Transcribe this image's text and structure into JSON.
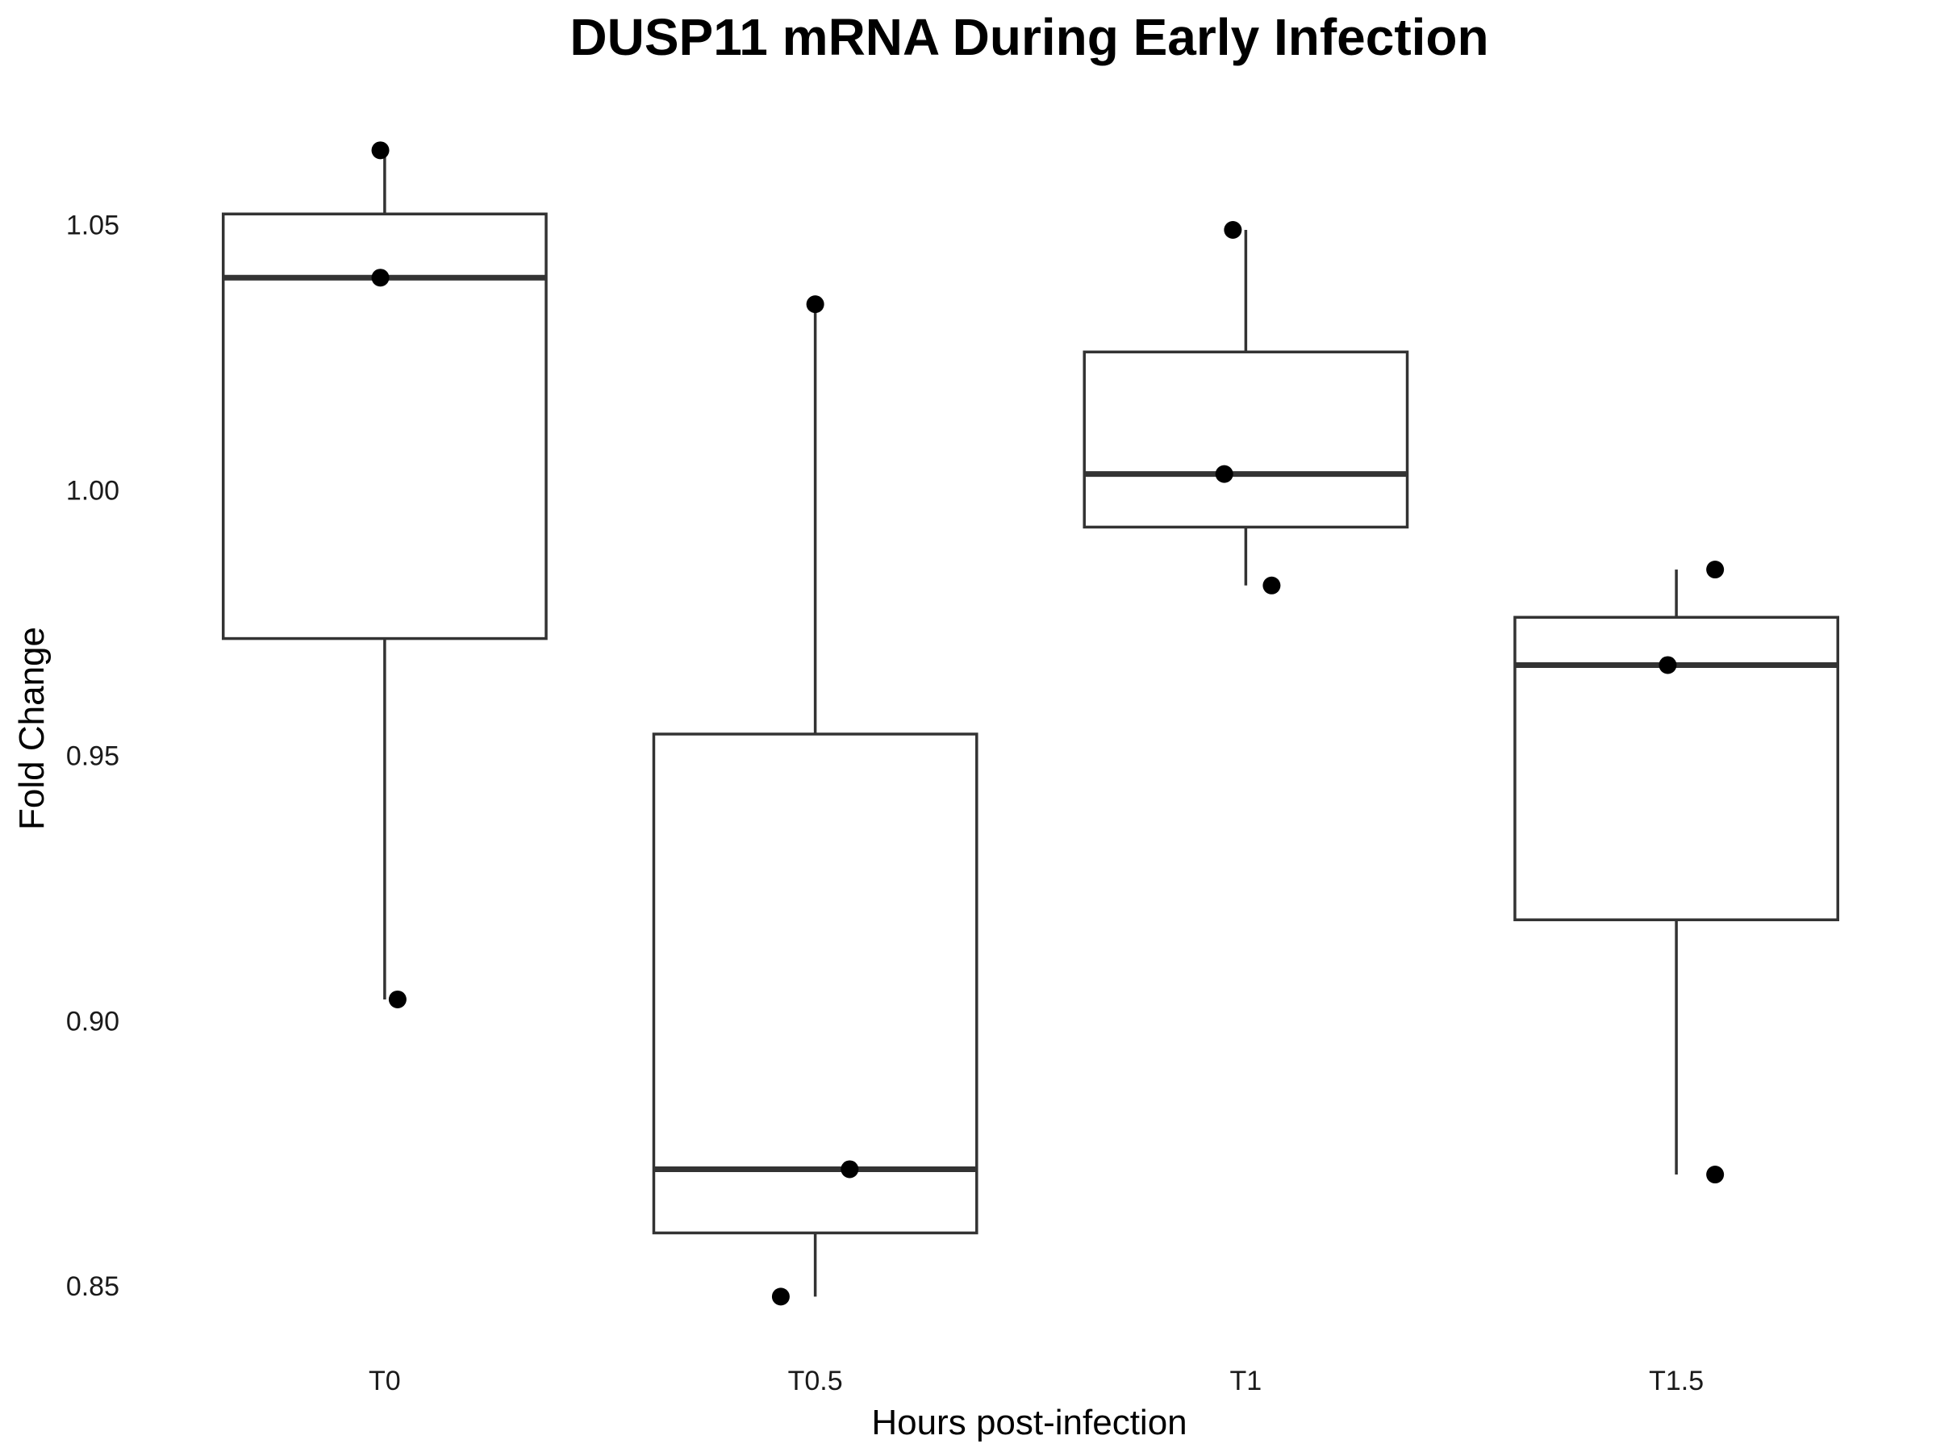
{
  "chart_data": {
    "type": "box",
    "title": "DUSP11 mRNA During Early Infection",
    "xlabel": "Hours post-infection",
    "ylabel": "Fold Change",
    "ylim": [
      0.84,
      1.068
    ],
    "yticks": [
      0.85,
      0.9,
      0.95,
      1.0,
      1.05
    ],
    "ytick_labels": [
      "0.85",
      "0.90",
      "0.95",
      "1.00",
      "1.05"
    ],
    "grid": false,
    "categories": [
      "T0",
      "T0.5",
      "T1",
      "T1.5"
    ],
    "boxes": [
      {
        "category": "T0",
        "min": 0.904,
        "q1": 0.972,
        "median": 1.04,
        "q3": 1.052,
        "max": 1.064
      },
      {
        "category": "T0.5",
        "min": 0.848,
        "q1": 0.86,
        "median": 0.872,
        "q3": 0.954,
        "max": 1.035
      },
      {
        "category": "T1",
        "min": 0.982,
        "q1": 0.993,
        "median": 1.003,
        "q3": 1.026,
        "max": 1.049
      },
      {
        "category": "T1.5",
        "min": 0.871,
        "q1": 0.919,
        "median": 0.967,
        "q3": 0.976,
        "max": 0.985
      }
    ],
    "points": [
      {
        "category": "T0",
        "jitter": -0.01,
        "y": 1.064
      },
      {
        "category": "T0",
        "jitter": -0.01,
        "y": 1.04
      },
      {
        "category": "T0",
        "jitter": 0.03,
        "y": 0.904
      },
      {
        "category": "T0.5",
        "jitter": 0.0,
        "y": 1.035
      },
      {
        "category": "T0.5",
        "jitter": 0.08,
        "y": 0.872
      },
      {
        "category": "T0.5",
        "jitter": -0.08,
        "y": 0.848
      },
      {
        "category": "T1",
        "jitter": -0.03,
        "y": 1.049
      },
      {
        "category": "T1",
        "jitter": -0.05,
        "y": 1.003
      },
      {
        "category": "T1",
        "jitter": 0.06,
        "y": 0.982
      },
      {
        "category": "T1.5",
        "jitter": 0.09,
        "y": 0.985
      },
      {
        "category": "T1.5",
        "jitter": -0.02,
        "y": 0.967
      },
      {
        "category": "T1.5",
        "jitter": 0.09,
        "y": 0.871
      }
    ],
    "colors": {
      "box_stroke": "#333333",
      "point_fill": "#000000",
      "box_fill": "#ffffff"
    }
  }
}
